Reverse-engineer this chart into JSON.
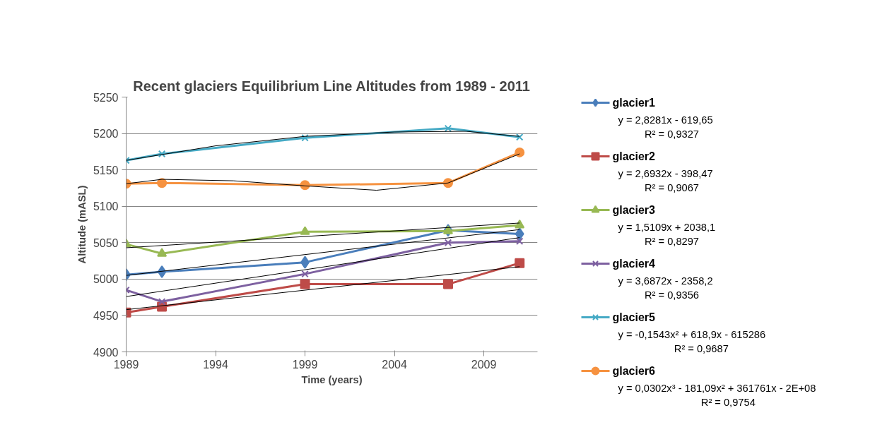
{
  "chart_data": {
    "type": "line",
    "title": "Recent glaciers Equilibrium Line Altitudes from 1989 - 2011",
    "xlabel": "Time (years)",
    "ylabel": "Altitude (mASL)",
    "x": [
      1989,
      1991,
      1999,
      2007,
      2011
    ],
    "xlim": [
      1989,
      2012
    ],
    "xticks": [
      1989,
      1994,
      1999,
      2004,
      2009
    ],
    "ylim": [
      4900,
      5250
    ],
    "yticks": [
      4900,
      4950,
      5000,
      5050,
      5100,
      5150,
      5200,
      5250
    ],
    "grid": "y",
    "legend": "right",
    "line_style": "solid",
    "series": [
      {
        "name": "glacier1",
        "color": "#4a7ebb",
        "marker": "diamond",
        "values": [
          5006,
          5010,
          5023,
          5067,
          5062
        ]
      },
      {
        "name": "glacier2",
        "color": "#be4b48",
        "marker": "square",
        "values": [
          4954,
          4962,
          4993,
          4993,
          5022
        ]
      },
      {
        "name": "glacier3",
        "color": "#98b954",
        "marker": "triangle",
        "values": [
          5048,
          5035,
          5065,
          5066,
          5074
        ]
      },
      {
        "name": "glacier4",
        "color": "#7d60a0",
        "marker": "cross",
        "values": [
          4985,
          4969,
          5007,
          5050,
          5052
        ]
      },
      {
        "name": "glacier5",
        "color": "#46aac5",
        "marker": "cross",
        "values": [
          5163,
          5172,
          5194,
          5207,
          5195
        ]
      },
      {
        "name": "glacier6",
        "color": "#f69240",
        "marker": "circle",
        "values": [
          5131,
          5132,
          5129,
          5132,
          5174
        ]
      },
      {
        "type": "line",
        "color": "#000000",
        "marker": "none",
        "x": [
          1989,
          2011
        ],
        "values": [
          5005,
          5068
        ]
      },
      {
        "type": "line",
        "color": "#000000",
        "marker": "none",
        "x": [
          1989,
          2011
        ],
        "values": [
          4958,
          5017
        ]
      },
      {
        "type": "line",
        "color": "#000000",
        "marker": "none",
        "x": [
          1989,
          2011
        ],
        "values": [
          5043,
          5077
        ]
      },
      {
        "type": "line",
        "color": "#000000",
        "marker": "none",
        "x": [
          1989,
          2011
        ],
        "values": [
          4976,
          5057
        ]
      },
      {
        "type": "line",
        "color": "#000000",
        "marker": "none",
        "x": [
          1989,
          1994,
          1999,
          2004,
          2008,
          2011
        ],
        "values": [
          5163,
          5183,
          5196,
          5202,
          5203,
          5196
        ]
      },
      {
        "type": "line",
        "color": "#000000",
        "marker": "none",
        "x": [
          1989,
          1991,
          1995,
          1999,
          2003,
          2007,
          2011
        ],
        "values": [
          5131,
          5137,
          5135,
          5128,
          5122,
          5132,
          5172
        ]
      }
    ],
    "annotations": [
      "y = 2,8281x - 619,65",
      "R² = 0,9327",
      "y = 2,6932x - 398,47",
      "R² = 0,9067",
      "y = 1,5109x + 2038,1",
      "R² = 0,8297",
      "y = 3,6872x - 2358,2",
      "R² = 0,9356",
      "y = -0,1543x² + 618,9x - 615286",
      "R² = 0,9687",
      "y = 0,0302x³ - 181,09x² + 361761x - 2E+08",
      "R² = 0,9754"
    ]
  }
}
